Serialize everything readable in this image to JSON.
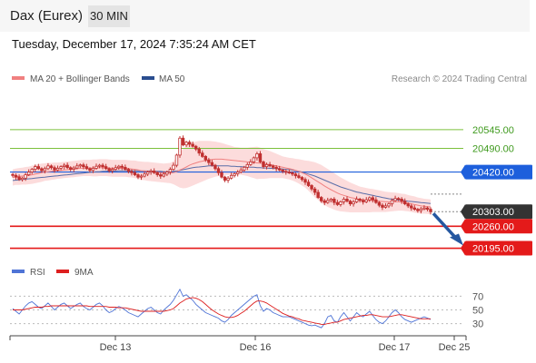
{
  "header": {
    "instrument": "Dax (Eurex)",
    "timeframe": "30 MIN"
  },
  "timestamp": "Tuesday, December 17, 2024 7:35:24 AM CET",
  "legend": {
    "bollinger": "MA 20 + Bollinger Bands",
    "ma50": "MA 50",
    "credit": "Research © 2024 Trading Central",
    "rsi": "RSI",
    "rsi_ma": "9MA"
  },
  "colors": {
    "candle": "#c03030",
    "ma20": "#f08080",
    "band_fill": "#fbd6d6",
    "ma50": "#5a6ea8",
    "resistance": "#7cc03c",
    "pivot": "#1d5fdc",
    "support": "#e41a1a",
    "last": "#333333",
    "arrow": "#2557a0",
    "rsi": "#4f74d6",
    "rsi_ma": "#dd1f1f"
  },
  "chart_data": [
    {
      "type": "candlestick",
      "title": "Dax (Eurex)",
      "timeframe": "30 MIN",
      "x_ticks": [
        "Dec 13",
        "Dec 16",
        "Dec 17",
        "Dec 25"
      ],
      "ylim": [
        20175,
        20660
      ],
      "levels": [
        {
          "value": 20545.0,
          "label": "20545.00",
          "kind": "resistance"
        },
        {
          "value": 20490.0,
          "label": "20490.00",
          "kind": "resistance"
        },
        {
          "value": 20420.0,
          "label": "20420.00",
          "kind": "pivot"
        },
        {
          "value": 20303.0,
          "label": "20303.00",
          "kind": "last"
        },
        {
          "value": 20260.0,
          "label": "20260.00",
          "kind": "support"
        },
        {
          "value": 20195.0,
          "label": "20195.00",
          "kind": "support"
        }
      ],
      "candles_close": [
        20410,
        20405,
        20398,
        20402,
        20412,
        20420,
        20428,
        20436,
        20430,
        20424,
        20430,
        20438,
        20433,
        20426,
        20431,
        20436,
        20440,
        20433,
        20428,
        20432,
        20438,
        20441,
        20436,
        20430,
        20425,
        20431,
        20437,
        20440,
        20436,
        20430,
        20424,
        20428,
        20433,
        20437,
        20434,
        20428,
        20422,
        20418,
        20412,
        20405,
        20408,
        20414,
        20420,
        20423,
        20418,
        20412,
        20408,
        20414,
        20420,
        20428,
        20440,
        20470,
        20520,
        20500,
        20508,
        20502,
        20496,
        20488,
        20476,
        20466,
        20456,
        20448,
        20440,
        20430,
        20418,
        20405,
        20396,
        20402,
        20410,
        20415,
        20420,
        20426,
        20434,
        20442,
        20450,
        20462,
        20474,
        20450,
        20436,
        20442,
        20438,
        20434,
        20430,
        20426,
        20422,
        20420,
        20418,
        20414,
        20409,
        20404,
        20398,
        20390,
        20380,
        20370,
        20360,
        20345,
        20335,
        20330,
        20336,
        20340,
        20330,
        20324,
        20332,
        20340,
        20334,
        20326,
        20332,
        20340,
        20336,
        20332,
        20338,
        20344,
        20338,
        20330,
        20322,
        20316,
        20320,
        20326,
        20336,
        20342,
        20340,
        20334,
        20326,
        20320,
        20314,
        20310,
        20306,
        20311,
        20314,
        20310,
        20303
      ],
      "ma20": [
        20404,
        20406,
        20407,
        20408,
        20409,
        20410,
        20412,
        20414,
        20416,
        20418,
        20420,
        20421,
        20422,
        20423,
        20424,
        20425,
        20426,
        20427,
        20428,
        20429,
        20430,
        20431,
        20432,
        20432,
        20432,
        20432,
        20432,
        20433,
        20433,
        20433,
        20432,
        20431,
        20431,
        20431,
        20431,
        20431,
        20430,
        20429,
        20428,
        20426,
        20424,
        20423,
        20422,
        20421,
        20420,
        20419,
        20418,
        20417,
        20417,
        20417,
        20418,
        20421,
        20426,
        20430,
        20435,
        20440,
        20444,
        20447,
        20450,
        20452,
        20454,
        20456,
        20457,
        20458,
        20458,
        20458,
        20457,
        20456,
        20455,
        20454,
        20453,
        20452,
        20451,
        20450,
        20449,
        20448,
        20447,
        20446,
        20444,
        20443,
        20442,
        20440,
        20438,
        20436,
        20434,
        20432,
        20430,
        20428,
        20425,
        20422,
        20418,
        20414,
        20409,
        20403,
        20397,
        20391,
        20385,
        20379,
        20373,
        20368,
        20363,
        20358,
        20354,
        20351,
        20348,
        20345,
        20343,
        20341,
        20339,
        20338,
        20337,
        20336,
        20336,
        20335,
        20334,
        20333,
        20332,
        20332,
        20332,
        20332,
        20332,
        20331,
        20330,
        20328,
        20326,
        20324,
        20322,
        20320,
        20319,
        20318,
        20317
      ],
      "ma50": [
        20395,
        20396,
        20397,
        20398,
        20399,
        20400,
        20401,
        20402,
        20403,
        20404,
        20405,
        20406,
        20407,
        20408,
        20409,
        20410,
        20411,
        20412,
        20413,
        20414,
        20415,
        20416,
        20417,
        20418,
        20419,
        20420,
        20421,
        20421,
        20422,
        20422,
        20423,
        20423,
        20423,
        20424,
        20424,
        20424,
        20424,
        20424,
        20424,
        20424,
        20423,
        20423,
        20423,
        20423,
        20422,
        20422,
        20422,
        20421,
        20421,
        20421,
        20422,
        20423,
        20425,
        20427,
        20429,
        20431,
        20433,
        20434,
        20435,
        20436,
        20437,
        20438,
        20438,
        20438,
        20438,
        20438,
        20438,
        20438,
        20437,
        20437,
        20436,
        20436,
        20435,
        20435,
        20434,
        20434,
        20433,
        20433,
        20432,
        20432,
        20431,
        20431,
        20430,
        20430,
        20429,
        20428,
        20427,
        20426,
        20424,
        20422,
        20420,
        20417,
        20414,
        20411,
        20408,
        20404,
        20400,
        20396,
        20392,
        20388,
        20384,
        20380,
        20376,
        20373,
        20370,
        20367,
        20364,
        20361,
        20359,
        20357,
        20355,
        20353,
        20351,
        20349,
        20347,
        20345,
        20343,
        20341,
        20340,
        20338,
        20337,
        20336,
        20335,
        20334,
        20333,
        20332,
        20331,
        20330,
        20329,
        20328,
        20327
      ],
      "band_width": [
        24,
        24,
        25,
        25,
        26,
        26,
        27,
        27,
        27,
        27,
        26,
        26,
        25,
        25,
        24,
        24,
        24,
        24,
        24,
        24,
        24,
        24,
        24,
        24,
        24,
        25,
        25,
        25,
        25,
        25,
        25,
        25,
        25,
        25,
        25,
        25,
        25,
        25,
        26,
        26,
        27,
        27,
        28,
        28,
        28,
        28,
        28,
        28,
        29,
        30,
        34,
        42,
        52,
        58,
        62,
        64,
        64,
        63,
        62,
        60,
        58,
        56,
        54,
        52,
        50,
        48,
        46,
        44,
        42,
        40,
        40,
        40,
        41,
        42,
        44,
        46,
        48,
        46,
        44,
        42,
        40,
        38,
        36,
        34,
        32,
        32,
        32,
        33,
        34,
        36,
        38,
        40,
        44,
        48,
        52,
        54,
        56,
        56,
        56,
        55,
        54,
        52,
        50,
        48,
        46,
        44,
        42,
        40,
        38,
        37,
        36,
        35,
        34,
        33,
        32,
        31,
        30,
        29,
        28,
        27,
        26,
        25,
        25,
        24,
        24,
        24,
        23,
        23,
        22,
        22,
        22
      ]
    },
    {
      "type": "line",
      "title": "RSI",
      "y_ticks": [
        70,
        50,
        30
      ],
      "series": [
        {
          "name": "RSI",
          "values": [
            52,
            48,
            44,
            50,
            56,
            60,
            62,
            58,
            54,
            52,
            56,
            60,
            55,
            50,
            54,
            58,
            60,
            56,
            52,
            55,
            58,
            60,
            55,
            52,
            50,
            54,
            58,
            60,
            56,
            50,
            46,
            48,
            52,
            55,
            53,
            50,
            46,
            44,
            42,
            40,
            44,
            48,
            52,
            54,
            50,
            46,
            44,
            50,
            54,
            58,
            64,
            72,
            80,
            70,
            72,
            68,
            64,
            58,
            54,
            50,
            46,
            44,
            42,
            40,
            38,
            34,
            32,
            36,
            42,
            46,
            50,
            54,
            58,
            62,
            66,
            70,
            72,
            56,
            48,
            52,
            50,
            46,
            44,
            42,
            40,
            40,
            40,
            38,
            36,
            34,
            32,
            30,
            28,
            27,
            28,
            26,
            24,
            30,
            40,
            42,
            34,
            32,
            40,
            46,
            40,
            34,
            40,
            46,
            42,
            40,
            44,
            48,
            42,
            36,
            32,
            30,
            34,
            40,
            46,
            50,
            46,
            40,
            36,
            34,
            32,
            34,
            36,
            38,
            40,
            38,
            36
          ]
        },
        {
          "name": "9MA",
          "values": [
            50,
            50,
            50,
            50,
            51,
            52,
            53,
            54,
            54,
            54,
            55,
            55,
            56,
            56,
            56,
            56,
            56,
            56,
            56,
            56,
            56,
            56,
            56,
            56,
            55,
            55,
            55,
            55,
            55,
            55,
            54,
            54,
            54,
            53,
            53,
            53,
            52,
            51,
            50,
            49,
            48,
            48,
            48,
            48,
            48,
            48,
            48,
            48,
            49,
            50,
            52,
            56,
            60,
            63,
            66,
            67,
            68,
            67,
            65,
            62,
            58,
            54,
            50,
            47,
            44,
            42,
            40,
            39,
            39,
            40,
            42,
            45,
            48,
            52,
            56,
            60,
            63,
            63,
            62,
            60,
            57,
            54,
            51,
            48,
            45,
            43,
            41,
            40,
            38,
            37,
            35,
            34,
            33,
            32,
            31,
            30,
            29,
            29,
            30,
            31,
            32,
            32,
            34,
            36,
            37,
            38,
            39,
            40,
            41,
            42,
            42,
            43,
            43,
            42,
            41,
            40,
            40,
            40,
            41,
            42,
            43,
            43,
            42,
            41,
            40,
            39,
            38,
            37,
            37,
            37,
            37
          ]
        }
      ]
    }
  ]
}
